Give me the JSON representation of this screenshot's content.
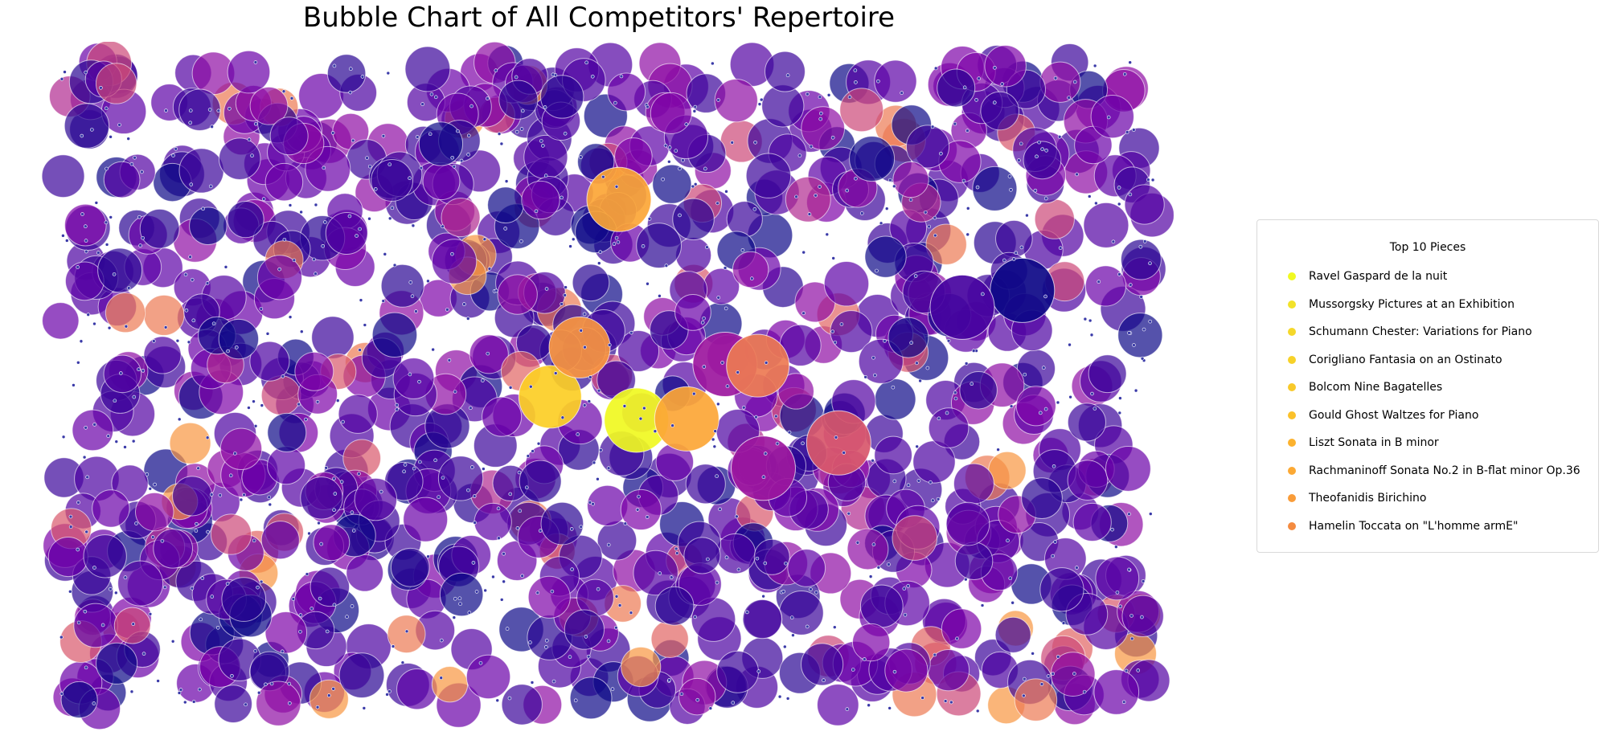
{
  "chart_data": {
    "type": "scatter",
    "title": "Bubble Chart of All Competitors' Repertoire",
    "xlabel": "",
    "ylabel": "",
    "axes_visible": false,
    "grid": false,
    "colormap": "plasma",
    "legend_position": "right",
    "legend": {
      "title": "Top 10 Pieces",
      "items": [
        {
          "label": "Ravel Gaspard de la nuit",
          "color": "#f0f921"
        },
        {
          "label": "Mussorgsky Pictures at an Exhibition",
          "color": "#f2e22a"
        },
        {
          "label": "Schumann Chester: Variations for Piano",
          "color": "#f5d82a"
        },
        {
          "label": "Corigliano Fantasia on an Ostinato",
          "color": "#f7d229"
        },
        {
          "label": "Bolcom Nine Bagatelles",
          "color": "#f8c92a"
        },
        {
          "label": "Gould Ghost Waltzes for Piano",
          "color": "#fbc12a"
        },
        {
          "label": "Liszt Sonata in B minor",
          "color": "#fcb22e"
        },
        {
          "label": "Rachmaninoff Sonata No.2 in B-flat minor Op.36",
          "color": "#fca934"
        },
        {
          "label": "Theofanidis Birichino",
          "color": "#f99c39"
        },
        {
          "label": "Hamelin Toccata on \"L'homme armE\"",
          "color": "#f48b40"
        }
      ]
    },
    "highlighted_bubbles": [
      {
        "x": 0.527,
        "y": 0.448,
        "size": 80,
        "color": "#f0f921"
      },
      {
        "x": 0.448,
        "y": 0.484,
        "size": 78,
        "color": "#fcce25"
      },
      {
        "x": 0.511,
        "y": 0.788,
        "size": 80,
        "color": "#fca636"
      },
      {
        "x": 0.573,
        "y": 0.45,
        "size": 80,
        "color": "#fca636"
      },
      {
        "x": 0.88,
        "y": 0.648,
        "size": 80,
        "color": "#0d0887"
      },
      {
        "x": 0.825,
        "y": 0.622,
        "size": 80,
        "color": "#46039f"
      },
      {
        "x": 0.608,
        "y": 0.534,
        "size": 80,
        "color": "#9c179e"
      },
      {
        "x": 0.643,
        "y": 0.374,
        "size": 80,
        "color": "#9c179e"
      },
      {
        "x": 0.712,
        "y": 0.413,
        "size": 80,
        "color": "#d8576b"
      },
      {
        "x": 0.638,
        "y": 0.532,
        "size": 78,
        "color": "#ed7953"
      },
      {
        "x": 0.475,
        "y": 0.56,
        "size": 76,
        "color": "#f89540"
      }
    ],
    "background_bubbles": {
      "count": 850,
      "size_range": [
        44,
        56
      ],
      "colors": [
        "#3b049a",
        "#4c02a1",
        "#5302a3",
        "#6a00a8",
        "#7e03a8",
        "#8f0da4",
        "#3a049a",
        "#2a0593",
        "#5c01a6",
        "#0d0887"
      ],
      "accent_colors": [
        "#b12a90",
        "#cc4778",
        "#d8576b",
        "#e16462",
        "#ed7953",
        "#f89540"
      ]
    },
    "dot_markers": {
      "count": 700,
      "color": "#3a3aa8"
    }
  }
}
